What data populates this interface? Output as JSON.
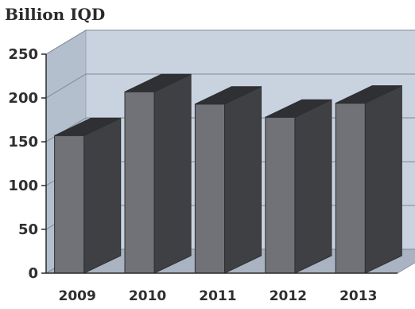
{
  "chart_data": {
    "type": "bar",
    "unit_label": "Billion IQD",
    "categories": [
      "2009",
      "2010",
      "2011",
      "2012",
      "2013"
    ],
    "values": [
      157,
      207,
      193,
      178,
      194
    ],
    "yticks": [
      0,
      50,
      100,
      150,
      200,
      250
    ],
    "ylim": [
      0,
      250
    ],
    "grid": true,
    "style": "3d",
    "colors": {
      "bar_front": "#707277",
      "bar_side": "#3e4044",
      "bar_top": "#2e3033",
      "back_wall": "#c9d3e0",
      "side_wall": "#b4bfcd",
      "floor": "#a9b3c1",
      "gridline": "#7f8894",
      "axis": "#2a2a2a"
    }
  }
}
